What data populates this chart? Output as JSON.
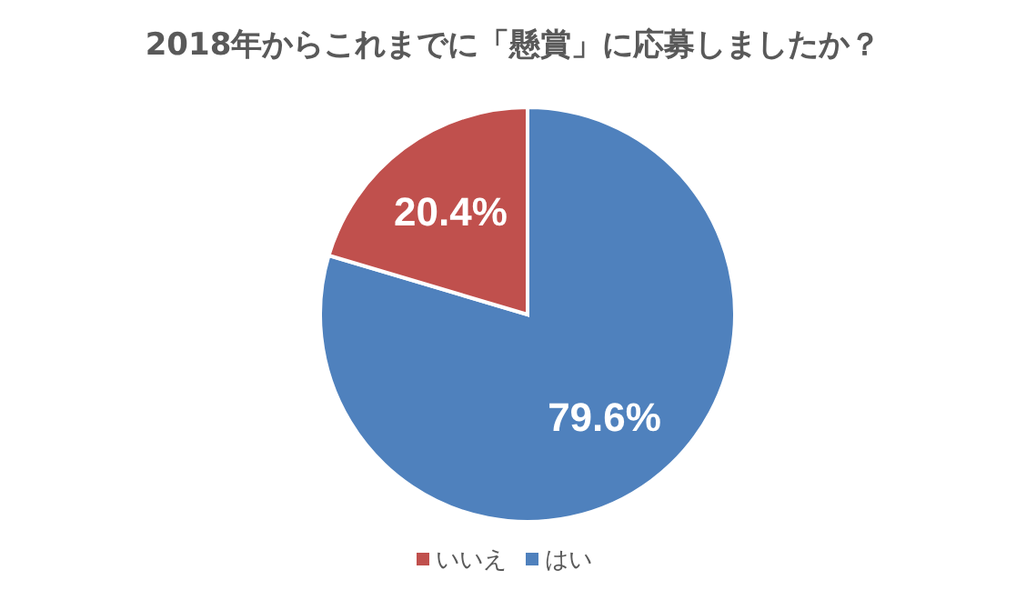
{
  "chart_data": {
    "type": "pie",
    "title": "2018年からこれまでに「懸賞」に応募しましたか？",
    "categories": [
      "はい",
      "いいえ"
    ],
    "values": [
      79.6,
      20.4
    ],
    "colors": [
      "#4f81bd",
      "#c0504d"
    ],
    "value_labels": [
      "79.6%",
      "20.4%"
    ],
    "legend": "bottom"
  }
}
